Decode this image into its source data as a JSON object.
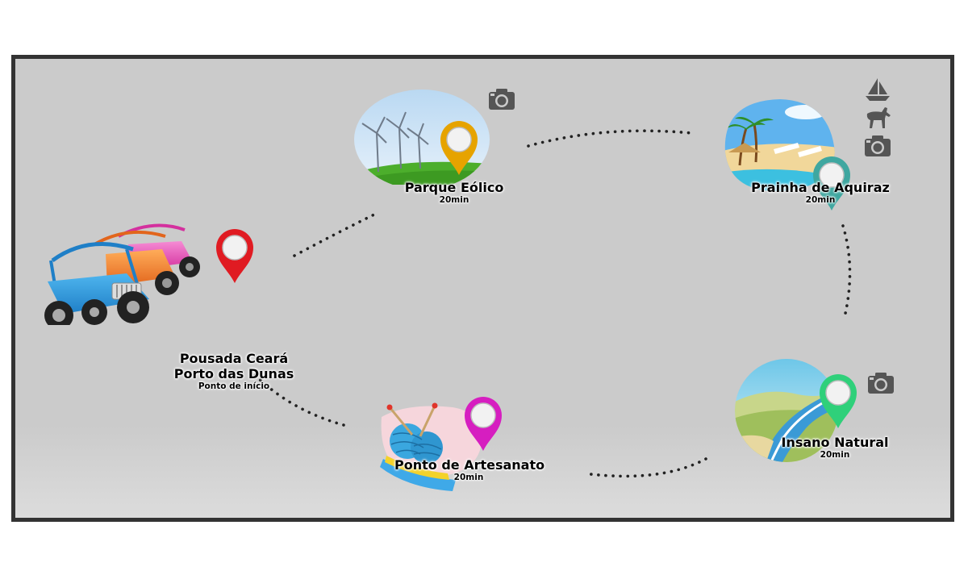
{
  "colors": {
    "background": "#cbcbcb",
    "frame_border": "#333333",
    "route_dots": "#222222",
    "pin_start": "#e01b22",
    "pin_eolico": "#e6a300",
    "pin_aquiraz": "#3fa7a0",
    "pin_insano": "#2fd07a",
    "pin_artesanato": "#d61ec0",
    "icon_gray": "#555555"
  },
  "stops": {
    "start": {
      "name_line1": "Pousada Ceará",
      "name_line2": "Porto das Dunas",
      "subtitle": "Ponto de início",
      "image": "buggies-illustration",
      "pin_color": "#e01b22"
    },
    "eolico": {
      "name": "Parque Eólico",
      "duration": "20min",
      "image": "wind-turbines-illustration",
      "pin_color": "#e6a300",
      "activities": [
        "camera-icon"
      ]
    },
    "aquiraz": {
      "name": "Prainha de Aquiraz",
      "duration": "20min",
      "image": "beach-illustration",
      "pin_color": "#3fa7a0",
      "activities": [
        "sailboat-icon",
        "horse-icon",
        "camera-icon"
      ]
    },
    "insano": {
      "name": "Insano Natural",
      "duration": "20min",
      "image": "waterslide-illustration",
      "pin_color": "#2fd07a",
      "activities": [
        "camera-icon"
      ]
    },
    "artesanato": {
      "name": "Ponto de Artesanato",
      "duration": "20min",
      "image": "yarn-illustration",
      "pin_color": "#d61ec0",
      "activities": []
    }
  }
}
